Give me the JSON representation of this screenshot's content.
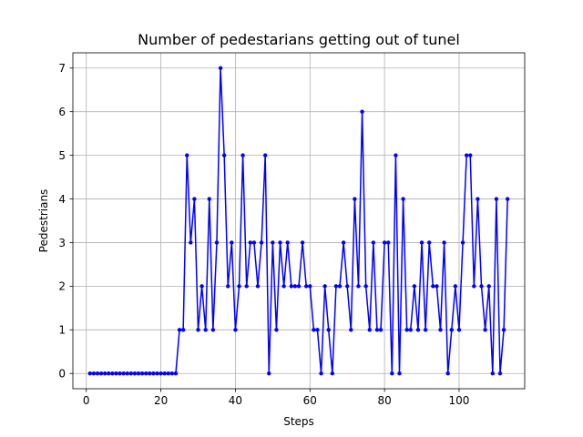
{
  "chart_data": {
    "type": "line",
    "title": "Number of pedestarians getting out of tunel",
    "xlabel": "Steps",
    "ylabel": "Pedestrians",
    "xlim": [
      -3.6,
      117.6
    ],
    "ylim": [
      -0.35,
      7.35
    ],
    "xticks": [
      0,
      20,
      40,
      60,
      80,
      100
    ],
    "yticks": [
      0,
      1,
      2,
      3,
      4,
      5,
      6,
      7
    ],
    "grid": true,
    "series": [
      {
        "color": "#0000ff",
        "marker": "circle",
        "x": [
          1,
          2,
          3,
          4,
          5,
          6,
          7,
          8,
          9,
          10,
          11,
          12,
          13,
          14,
          15,
          16,
          17,
          18,
          19,
          20,
          21,
          22,
          23,
          24,
          25,
          26,
          27,
          28,
          29,
          30,
          31,
          32,
          33,
          34,
          35,
          36,
          37,
          38,
          39,
          40,
          41,
          42,
          43,
          44,
          45,
          46,
          47,
          48,
          49,
          50,
          51,
          52,
          53,
          54,
          55,
          56,
          57,
          58,
          59,
          60,
          61,
          62,
          63,
          64,
          65,
          66,
          67,
          68,
          69,
          70,
          71,
          72,
          73,
          74,
          75,
          76,
          77,
          78,
          79,
          80,
          81,
          82,
          83,
          84,
          85,
          86,
          87,
          88,
          89,
          90,
          91,
          92,
          93,
          94,
          95,
          96,
          97,
          98,
          99,
          100,
          101,
          102,
          103,
          104,
          105,
          106,
          107,
          108,
          109,
          110,
          111,
          112,
          113
        ],
        "y": [
          0,
          0,
          0,
          0,
          0,
          0,
          0,
          0,
          0,
          0,
          0,
          0,
          0,
          0,
          0,
          0,
          0,
          0,
          0,
          0,
          0,
          0,
          0,
          0,
          1,
          1,
          5,
          3,
          4,
          1,
          2,
          1,
          4,
          1,
          3,
          7,
          5,
          2,
          3,
          1,
          2,
          5,
          2,
          3,
          3,
          2,
          3,
          5,
          0,
          3,
          1,
          3,
          2,
          3,
          2,
          2,
          2,
          3,
          2,
          2,
          1,
          1,
          0,
          2,
          1,
          0,
          2,
          2,
          3,
          2,
          1,
          4,
          2,
          6,
          2,
          1,
          3,
          1,
          1,
          3,
          3,
          0,
          5,
          0,
          4,
          1,
          1,
          2,
          1,
          3,
          1,
          3,
          2,
          2,
          1,
          3,
          0,
          1,
          2,
          1,
          3,
          5,
          5,
          2,
          4,
          2,
          1,
          2,
          0,
          4,
          0,
          1,
          4
        ]
      }
    ]
  }
}
